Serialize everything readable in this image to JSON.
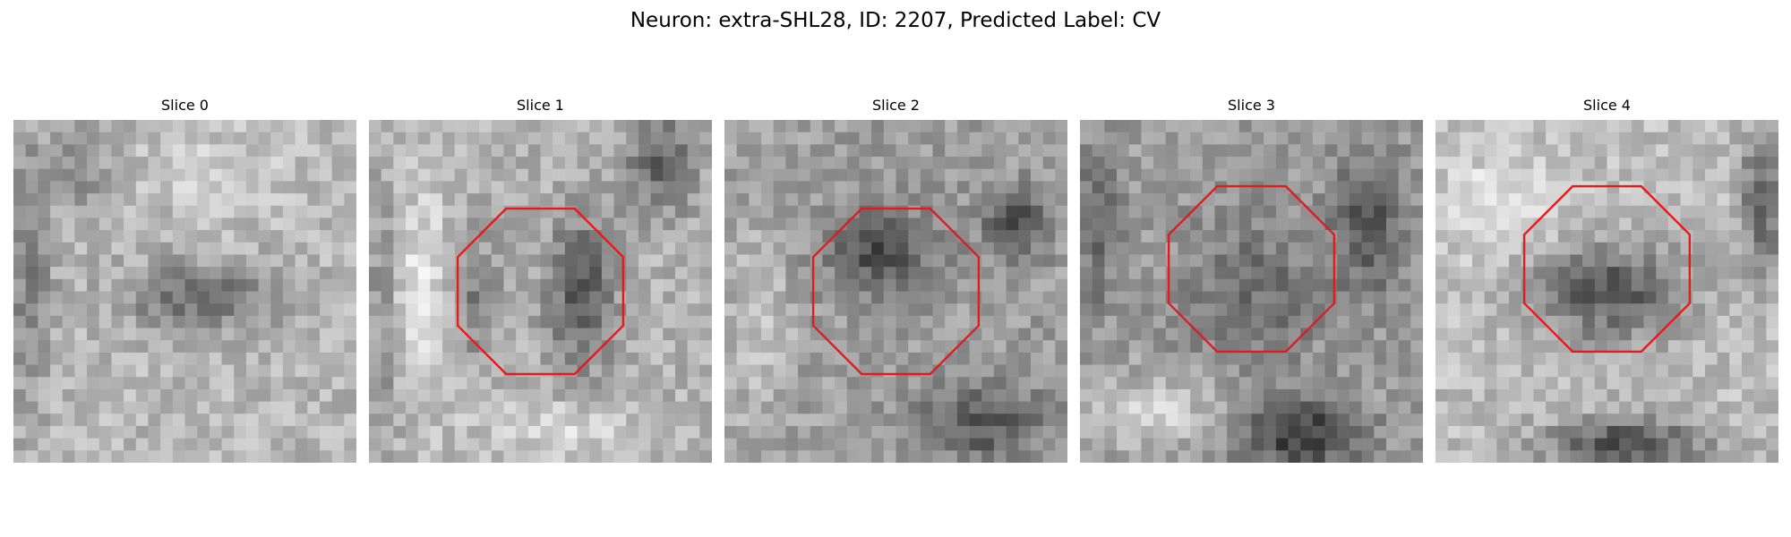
{
  "figure": {
    "title": "Neuron: extra-SHL28, ID: 2207, Predicted Label: CV"
  },
  "slices": [
    {
      "label": "Slice 0",
      "roi": false,
      "pattern": "diffuse-center"
    },
    {
      "label": "Slice 1",
      "roi": true,
      "pattern": "ring-with-bright-left"
    },
    {
      "label": "Slice 2",
      "roi": true,
      "pattern": "dark-core-bottom-blob"
    },
    {
      "label": "Slice 3",
      "roi": true,
      "pattern": "grey-core-dark-bottom"
    },
    {
      "label": "Slice 4",
      "roi": true,
      "pattern": "dark-oval-dark-bottom"
    }
  ],
  "colors": {
    "roi_outline": "#e41a1c",
    "background": "#ffffff"
  },
  "icons": {
    "roi_shape": "octagon"
  }
}
